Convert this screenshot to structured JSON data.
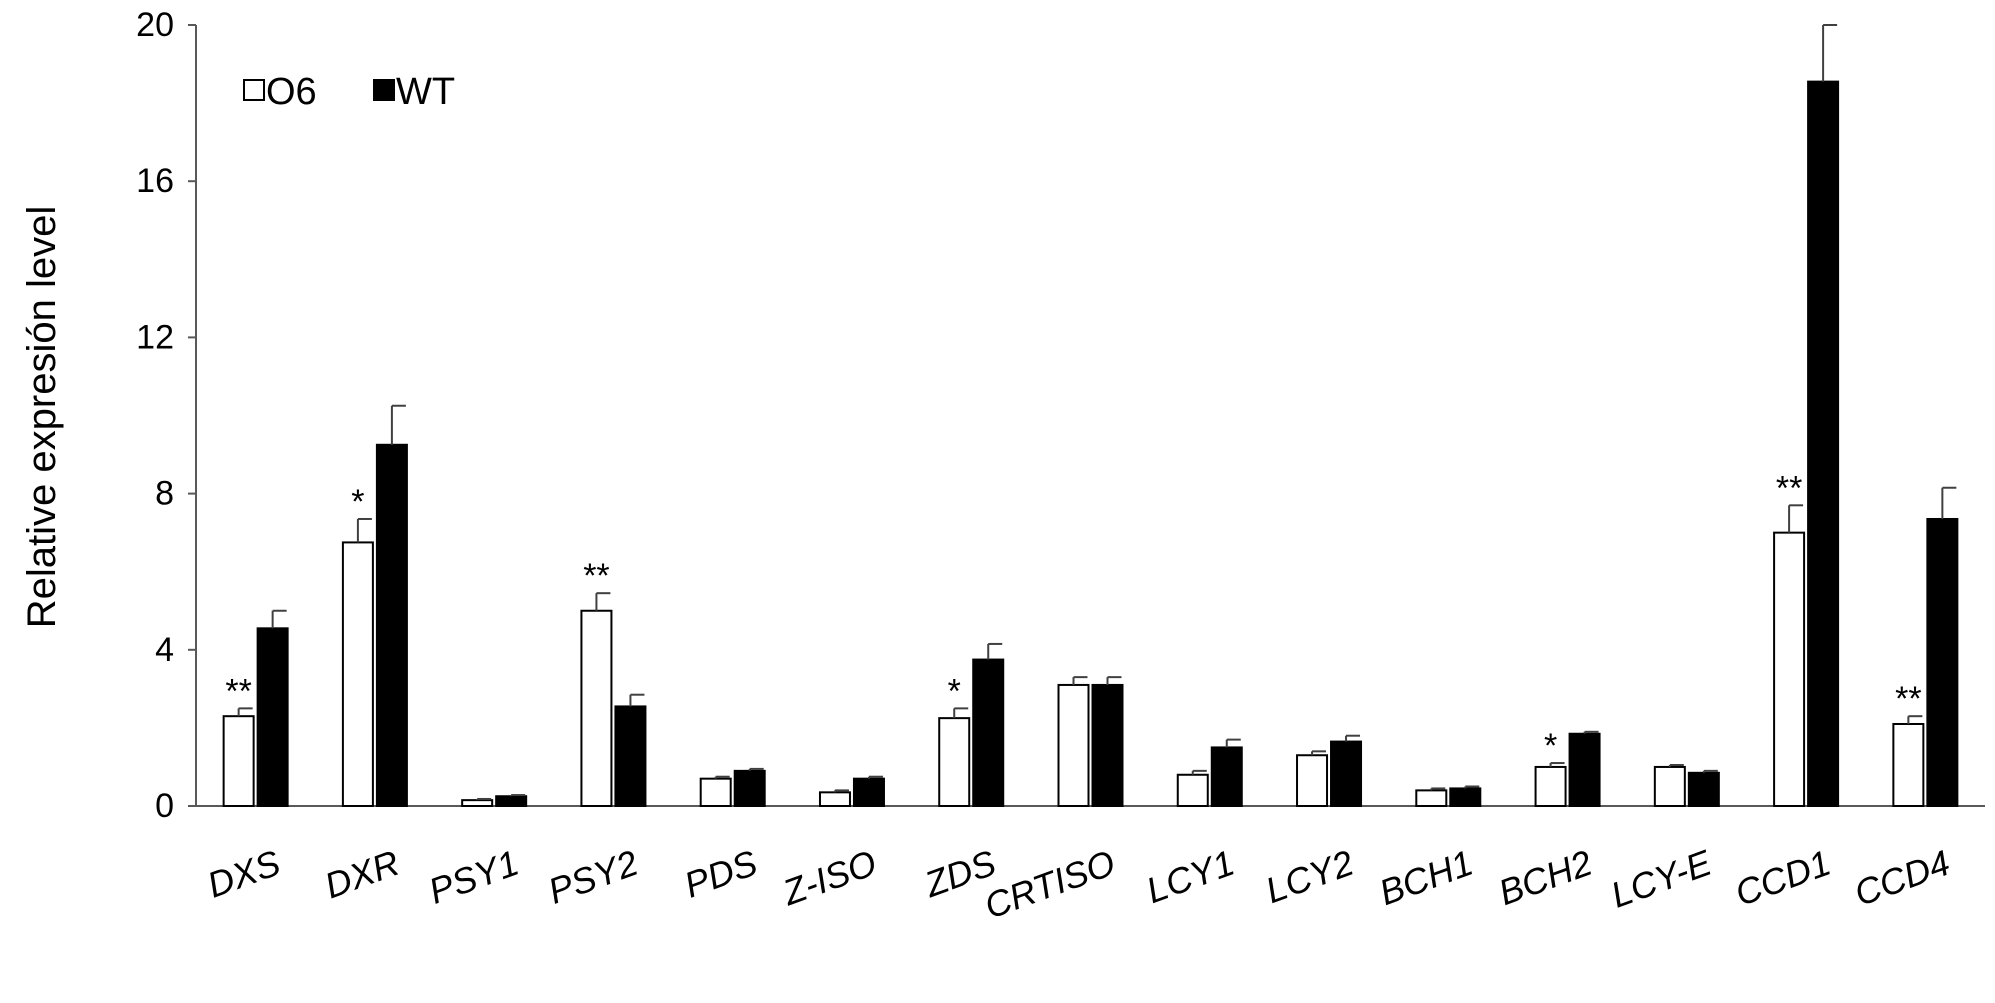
{
  "chart_data": {
    "type": "bar",
    "title": "",
    "xlabel": "",
    "ylabel": "Relative expresión level",
    "ylim": [
      0,
      20
    ],
    "yticks": [
      0,
      4,
      8,
      12,
      16,
      20
    ],
    "grid": false,
    "legend_position": "top-left",
    "categories": [
      "DXS",
      "DXR",
      "PSY1",
      "PSY2",
      "PDS",
      "Z-ISO",
      "ZDS",
      "CRTISO",
      "LCY1",
      "LCY2",
      "BCH1",
      "BCH2",
      "LCY-E",
      "CCD1",
      "CCD4"
    ],
    "series": [
      {
        "name": "O6",
        "fill": "#ffffff",
        "values": [
          2.3,
          6.75,
          0.15,
          5.0,
          0.7,
          0.35,
          2.25,
          3.1,
          0.8,
          1.3,
          0.4,
          1.0,
          1.0,
          7.0,
          2.1
        ],
        "errors": [
          0.2,
          0.6,
          0.03,
          0.45,
          0.05,
          0.05,
          0.25,
          0.2,
          0.1,
          0.1,
          0.05,
          0.1,
          0.05,
          0.7,
          0.2
        ],
        "significance": [
          "**",
          "*",
          "",
          "**",
          "",
          "",
          "*",
          "",
          "",
          "",
          "",
          "*",
          "",
          "**",
          "**"
        ]
      },
      {
        "name": "WT",
        "fill": "#000000",
        "values": [
          4.55,
          9.25,
          0.25,
          2.55,
          0.9,
          0.7,
          3.75,
          3.1,
          1.5,
          1.65,
          0.45,
          1.85,
          0.85,
          18.55,
          7.35
        ],
        "errors": [
          0.45,
          1.0,
          0.03,
          0.3,
          0.05,
          0.05,
          0.4,
          0.2,
          0.2,
          0.15,
          0.05,
          0.05,
          0.05,
          1.45,
          0.8
        ]
      }
    ]
  },
  "colors": {
    "axis": "#595959",
    "errorbar": "#404040",
    "O6": "#ffffff",
    "WT": "#000000"
  }
}
